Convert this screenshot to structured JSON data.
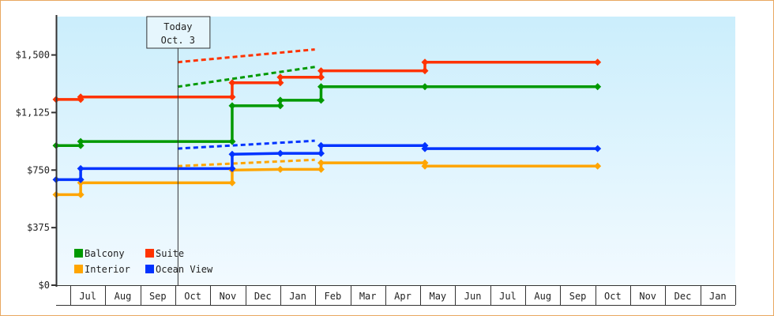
{
  "chart_data": {
    "type": "line",
    "step": true,
    "ylim": [
      0,
      1750
    ],
    "yticks": [
      {
        "value": 0,
        "label": "$0"
      },
      {
        "value": 375,
        "label": "$375"
      },
      {
        "value": 750,
        "label": "$750"
      },
      {
        "value": 1125,
        "label": "$1,125"
      },
      {
        "value": 1500,
        "label": "$1,500"
      }
    ],
    "xstart": "Jun 19",
    "xticks": [
      "Jul",
      "Aug",
      "Sep",
      "Oct",
      "Nov",
      "Dec",
      "Jan",
      "Feb",
      "Mar",
      "Apr",
      "May",
      "Jun",
      "Jul",
      "Aug",
      "Sep",
      "Oct",
      "Nov",
      "Dec",
      "Jan"
    ],
    "today": {
      "date": "Oct 3",
      "label_line1": "Today",
      "label_line2": "Oct. 3"
    },
    "grid": false,
    "legend": "bottom-left",
    "series": [
      {
        "name": "Balcony",
        "color": "#009900",
        "points": [
          [
            "Jun 19",
            910
          ],
          [
            "Jul 10",
            910
          ],
          [
            "Jul 10",
            936
          ],
          [
            "Nov 20",
            936
          ],
          [
            "Nov 20",
            1169
          ],
          [
            "Jan 1",
            1169
          ],
          [
            "Jan 1",
            1205
          ],
          [
            "Feb 6",
            1205
          ],
          [
            "Feb 6",
            1293
          ],
          [
            "May 5",
            1293
          ],
          [
            "Oct 3",
            1293
          ]
        ],
        "forecast": [
          [
            "Oct 3",
            1293
          ],
          [
            "Jan 31",
            1422
          ]
        ]
      },
      {
        "name": "Suite",
        "color": "#ff3300",
        "points": [
          [
            "Jun 19",
            1210
          ],
          [
            "Jul 10",
            1210
          ],
          [
            "Jul 10",
            1226
          ],
          [
            "Nov 20",
            1226
          ],
          [
            "Nov 20",
            1319
          ],
          [
            "Jan 1",
            1319
          ],
          [
            "Jan 1",
            1355
          ],
          [
            "Feb 6",
            1355
          ],
          [
            "Feb 6",
            1397
          ],
          [
            "May 5",
            1397
          ],
          [
            "May 5",
            1453
          ],
          [
            "Oct 3",
            1453
          ]
        ],
        "forecast": [
          [
            "Oct 3",
            1453
          ],
          [
            "Jan 31",
            1536
          ]
        ]
      },
      {
        "name": "Interior",
        "color": "#ffa500",
        "points": [
          [
            "Jun 19",
            590
          ],
          [
            "Jul 10",
            590
          ],
          [
            "Jul 10",
            667
          ],
          [
            "Nov 20",
            667
          ],
          [
            "Nov 20",
            750
          ],
          [
            "Jan 1",
            755
          ],
          [
            "Feb 6",
            755
          ],
          [
            "Feb 6",
            797
          ],
          [
            "May 5",
            797
          ],
          [
            "May 5",
            776
          ],
          [
            "Oct 3",
            776
          ]
        ],
        "forecast": [
          [
            "Oct 3",
            776
          ],
          [
            "Jan 31",
            817
          ]
        ]
      },
      {
        "name": "Ocean View",
        "color": "#0033ff",
        "points": [
          [
            "Jun 19",
            688
          ],
          [
            "Jul 10",
            688
          ],
          [
            "Jul 10",
            760
          ],
          [
            "Nov 20",
            760
          ],
          [
            "Nov 20",
            853
          ],
          [
            "Jan 1",
            859
          ],
          [
            "Feb 6",
            859
          ],
          [
            "Feb 6",
            910
          ],
          [
            "May 5",
            910
          ],
          [
            "May 5",
            890
          ],
          [
            "Oct 3",
            890
          ]
        ],
        "forecast": [
          [
            "Oct 3",
            890
          ],
          [
            "Jan 31",
            941
          ]
        ]
      }
    ]
  }
}
